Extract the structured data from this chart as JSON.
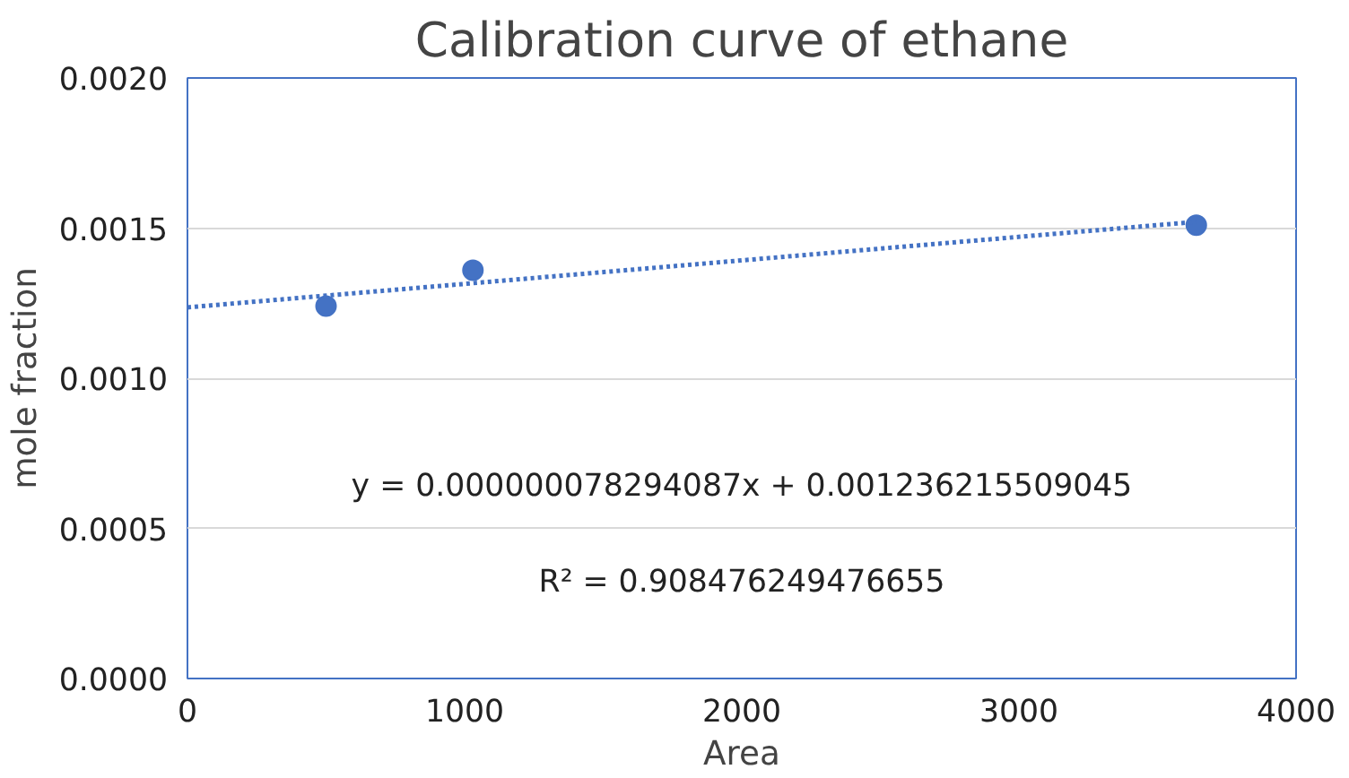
{
  "chart_data": {
    "type": "scatter",
    "title": "Calibration curve of ethane",
    "xlabel": "Area",
    "ylabel": "mole fraction",
    "series": [
      {
        "color": "#4472c4",
        "x": [
          500,
          1030,
          3640
        ],
        "values": [
          0.00124,
          0.00136,
          0.00151
        ],
        "marker": "circle"
      },
      {
        "type": "line",
        "color": "#4472c4",
        "x": [
          0,
          3640
        ],
        "values": [
          0.001236,
          0.001521
        ],
        "line_style": "dotted"
      }
    ],
    "annotations": [
      "y = 0.000000078294087x + 0.001236215509045",
      "R² = 0.908476249476655"
    ],
    "xlim": [
      0,
      4000
    ],
    "xticks": [
      0,
      1000,
      2000,
      3000,
      4000
    ],
    "ylim": [
      0,
      0.002
    ],
    "yticks": [
      {
        "value": 0,
        "label": "0.0000"
      },
      {
        "value": 0.0005,
        "label": "0.0005"
      },
      {
        "value": 0.001,
        "label": "0.0010"
      },
      {
        "value": 0.0015,
        "label": "0.0015"
      },
      {
        "value": 0.002,
        "label": "0.0020"
      }
    ],
    "grid": "y"
  }
}
